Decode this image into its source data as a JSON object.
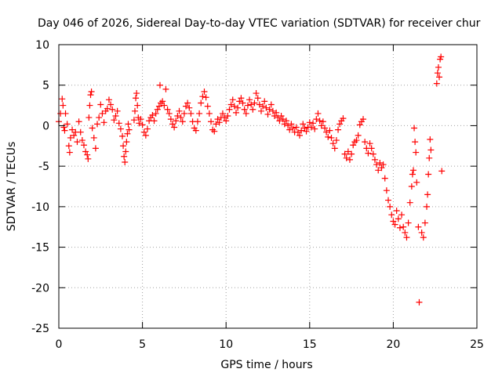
{
  "chart_data": {
    "type": "scatter",
    "title": "Day 046 of 2026, Sidereal Day-to-day VTEC variation (SDTVAR) for receiver chur",
    "xlabel": "GPS time / hours",
    "ylabel": "SDTVAR / TECUs",
    "xlim": [
      0,
      25
    ],
    "ylim": [
      -25,
      10
    ],
    "xticks": [
      0,
      5,
      10,
      15,
      20,
      25
    ],
    "yticks": [
      10,
      5,
      0,
      -5,
      -10,
      -15,
      -20,
      -25
    ],
    "grid": true,
    "marker": "+",
    "marker_color": "#ff0000",
    "series": [
      {
        "name": "SDTVAR",
        "points": [
          [
            0.0,
            0.5
          ],
          [
            0.1,
            1.5
          ],
          [
            0.2,
            3.3
          ],
          [
            0.25,
            2.5
          ],
          [
            0.3,
            -0.2
          ],
          [
            0.35,
            -0.6
          ],
          [
            0.4,
            1.5
          ],
          [
            0.5,
            0.2
          ],
          [
            0.6,
            -2.5
          ],
          [
            0.65,
            -3.3
          ],
          [
            0.7,
            -1.5
          ],
          [
            0.8,
            -0.5
          ],
          [
            0.9,
            -1.2
          ],
          [
            1.0,
            -0.8
          ],
          [
            1.1,
            -2.0
          ],
          [
            1.2,
            0.5
          ],
          [
            1.3,
            -0.8
          ],
          [
            1.4,
            -1.8
          ],
          [
            1.5,
            -2.4
          ],
          [
            1.6,
            -3.2
          ],
          [
            1.7,
            -3.6
          ],
          [
            1.75,
            -4.1
          ],
          [
            1.8,
            1.0
          ],
          [
            1.85,
            2.5
          ],
          [
            1.9,
            3.8
          ],
          [
            1.95,
            4.2
          ],
          [
            2.0,
            -0.3
          ],
          [
            2.1,
            -1.5
          ],
          [
            2.2,
            -2.8
          ],
          [
            2.3,
            0.2
          ],
          [
            2.4,
            1.0
          ],
          [
            2.5,
            2.6
          ],
          [
            2.6,
            1.5
          ],
          [
            2.7,
            0.4
          ],
          [
            2.8,
            1.8
          ],
          [
            2.9,
            2.1
          ],
          [
            3.0,
            3.2
          ],
          [
            3.1,
            2.6
          ],
          [
            3.2,
            2.0
          ],
          [
            3.3,
            0.7
          ],
          [
            3.4,
            1.2
          ],
          [
            3.5,
            1.8
          ],
          [
            3.6,
            0.3
          ],
          [
            3.7,
            -0.4
          ],
          [
            3.8,
            -1.3
          ],
          [
            3.85,
            -2.5
          ],
          [
            3.9,
            -3.8
          ],
          [
            3.95,
            -4.5
          ],
          [
            4.0,
            -3.2
          ],
          [
            4.05,
            -2.0
          ],
          [
            4.1,
            -1.0
          ],
          [
            4.15,
            0.2
          ],
          [
            4.2,
            -0.5
          ],
          [
            4.5,
            0.7
          ],
          [
            4.55,
            1.8
          ],
          [
            4.6,
            3.4
          ],
          [
            4.65,
            4.0
          ],
          [
            4.7,
            2.5
          ],
          [
            4.75,
            1.0
          ],
          [
            4.8,
            0.3
          ],
          [
            4.9,
            0.8
          ],
          [
            5.0,
            0.1
          ],
          [
            5.1,
            -0.8
          ],
          [
            5.2,
            -1.2
          ],
          [
            5.3,
            -0.4
          ],
          [
            5.4,
            0.6
          ],
          [
            5.5,
            1.0
          ],
          [
            5.6,
            1.3
          ],
          [
            5.7,
            0.6
          ],
          [
            5.8,
            1.5
          ],
          [
            5.9,
            2.0
          ],
          [
            6.0,
            2.4
          ],
          [
            6.05,
            5.0
          ],
          [
            6.1,
            2.8
          ],
          [
            6.2,
            3.0
          ],
          [
            6.3,
            2.5
          ],
          [
            6.4,
            4.5
          ],
          [
            6.5,
            2.0
          ],
          [
            6.6,
            1.5
          ],
          [
            6.7,
            0.8
          ],
          [
            6.8,
            0.2
          ],
          [
            6.9,
            -0.2
          ],
          [
            7.0,
            0.6
          ],
          [
            7.1,
            1.2
          ],
          [
            7.2,
            1.8
          ],
          [
            7.3,
            1.0
          ],
          [
            7.4,
            0.5
          ],
          [
            7.5,
            1.5
          ],
          [
            7.6,
            2.4
          ],
          [
            7.7,
            2.8
          ],
          [
            7.8,
            2.2
          ],
          [
            7.9,
            1.5
          ],
          [
            8.0,
            0.5
          ],
          [
            8.1,
            -0.3
          ],
          [
            8.2,
            -0.6
          ],
          [
            8.3,
            0.5
          ],
          [
            8.4,
            1.5
          ],
          [
            8.5,
            2.8
          ],
          [
            8.6,
            3.6
          ],
          [
            8.7,
            4.2
          ],
          [
            8.8,
            3.5
          ],
          [
            8.9,
            2.4
          ],
          [
            9.0,
            1.5
          ],
          [
            9.1,
            0.5
          ],
          [
            9.2,
            -0.5
          ],
          [
            9.3,
            -0.7
          ],
          [
            9.4,
            0.2
          ],
          [
            9.5,
            0.8
          ],
          [
            9.6,
            0.4
          ],
          [
            9.7,
            1.0
          ],
          [
            9.8,
            1.5
          ],
          [
            9.9,
            1.0
          ],
          [
            10.0,
            0.6
          ],
          [
            10.1,
            1.2
          ],
          [
            10.2,
            2.0
          ],
          [
            10.3,
            2.6
          ],
          [
            10.4,
            3.2
          ],
          [
            10.5,
            2.4
          ],
          [
            10.6,
            1.6
          ],
          [
            10.7,
            2.2
          ],
          [
            10.8,
            3.0
          ],
          [
            10.9,
            3.4
          ],
          [
            11.0,
            2.8
          ],
          [
            11.1,
            2.0
          ],
          [
            11.2,
            1.5
          ],
          [
            11.3,
            2.5
          ],
          [
            11.4,
            3.2
          ],
          [
            11.5,
            2.6
          ],
          [
            11.6,
            2.0
          ],
          [
            11.7,
            2.8
          ],
          [
            11.8,
            4.0
          ],
          [
            11.9,
            3.4
          ],
          [
            12.0,
            2.6
          ],
          [
            12.1,
            1.8
          ],
          [
            12.2,
            2.4
          ],
          [
            12.3,
            3.0
          ],
          [
            12.4,
            2.2
          ],
          [
            12.5,
            1.4
          ],
          [
            12.6,
            2.0
          ],
          [
            12.7,
            2.6
          ],
          [
            12.8,
            1.8
          ],
          [
            12.9,
            1.2
          ],
          [
            13.0,
            1.6
          ],
          [
            13.1,
            1.0
          ],
          [
            13.2,
            0.6
          ],
          [
            13.3,
            1.2
          ],
          [
            13.4,
            0.8
          ],
          [
            13.5,
            0.2
          ],
          [
            13.6,
            0.6
          ],
          [
            13.7,
            0.0
          ],
          [
            13.8,
            -0.5
          ],
          [
            13.9,
            0.2
          ],
          [
            14.0,
            -0.3
          ],
          [
            14.1,
            -0.8
          ],
          [
            14.2,
            -0.2
          ],
          [
            14.3,
            -0.8
          ],
          [
            14.4,
            -1.2
          ],
          [
            14.5,
            -0.6
          ],
          [
            14.6,
            0.2
          ],
          [
            14.7,
            -0.3
          ],
          [
            14.8,
            -0.7
          ],
          [
            14.9,
            -0.2
          ],
          [
            15.0,
            0.4
          ],
          [
            15.1,
            -0.2
          ],
          [
            15.2,
            0.3
          ],
          [
            15.3,
            -0.4
          ],
          [
            15.4,
            0.8
          ],
          [
            15.5,
            1.5
          ],
          [
            15.6,
            0.6
          ],
          [
            15.7,
            0.0
          ],
          [
            15.8,
            0.5
          ],
          [
            15.9,
            -0.3
          ],
          [
            16.0,
            -0.8
          ],
          [
            16.1,
            -1.4
          ],
          [
            16.2,
            -0.6
          ],
          [
            16.3,
            -1.5
          ],
          [
            16.4,
            -2.2
          ],
          [
            16.5,
            -2.8
          ],
          [
            16.6,
            -1.8
          ],
          [
            16.7,
            -0.5
          ],
          [
            16.8,
            0.2
          ],
          [
            16.9,
            0.6
          ],
          [
            17.0,
            0.9
          ],
          [
            17.1,
            -3.5
          ],
          [
            17.2,
            -4.0
          ],
          [
            17.3,
            -3.2
          ],
          [
            17.4,
            -4.2
          ],
          [
            17.5,
            -3.5
          ],
          [
            17.6,
            -2.4
          ],
          [
            17.7,
            -2.0
          ],
          [
            17.8,
            -1.8
          ],
          [
            17.9,
            -1.2
          ],
          [
            18.0,
            0.1
          ],
          [
            18.1,
            0.5
          ],
          [
            18.2,
            0.8
          ],
          [
            18.3,
            -2.0
          ],
          [
            18.4,
            -2.8
          ],
          [
            18.5,
            -3.4
          ],
          [
            18.6,
            -2.2
          ],
          [
            18.7,
            -2.8
          ],
          [
            18.8,
            -3.5
          ],
          [
            18.9,
            -4.2
          ],
          [
            19.0,
            -4.8
          ],
          [
            19.1,
            -5.5
          ],
          [
            19.2,
            -4.6
          ],
          [
            19.3,
            -5.2
          ],
          [
            19.4,
            -4.8
          ],
          [
            19.5,
            -6.5
          ],
          [
            19.6,
            -8.0
          ],
          [
            19.7,
            -9.2
          ],
          [
            19.8,
            -10.0
          ],
          [
            19.9,
            -11.0
          ],
          [
            20.0,
            -11.8
          ],
          [
            20.1,
            -12.2
          ],
          [
            20.2,
            -10.5
          ],
          [
            20.3,
            -11.5
          ],
          [
            20.4,
            -12.6
          ],
          [
            20.5,
            -11.0
          ],
          [
            20.6,
            -12.5
          ],
          [
            20.7,
            -13.2
          ],
          [
            20.8,
            -13.8
          ],
          [
            20.9,
            -12.0
          ],
          [
            21.0,
            -9.5
          ],
          [
            21.1,
            -7.5
          ],
          [
            21.15,
            -6.0
          ],
          [
            21.2,
            -5.5
          ],
          [
            21.25,
            -0.3
          ],
          [
            21.3,
            -2.0
          ],
          [
            21.35,
            -3.3
          ],
          [
            21.4,
            -7.0
          ],
          [
            21.5,
            -12.5
          ],
          [
            21.55,
            -21.8
          ],
          [
            21.7,
            -13.2
          ],
          [
            21.8,
            -13.8
          ],
          [
            21.9,
            -12.0
          ],
          [
            22.0,
            -10.0
          ],
          [
            22.05,
            -8.5
          ],
          [
            22.1,
            -6.0
          ],
          [
            22.15,
            -4.0
          ],
          [
            22.2,
            -1.7
          ],
          [
            22.25,
            -3.0
          ],
          [
            22.6,
            5.2
          ],
          [
            22.65,
            6.5
          ],
          [
            22.7,
            7.2
          ],
          [
            22.75,
            6.0
          ],
          [
            22.8,
            8.2
          ],
          [
            22.85,
            8.5
          ],
          [
            22.9,
            -5.6
          ]
        ]
      }
    ]
  }
}
